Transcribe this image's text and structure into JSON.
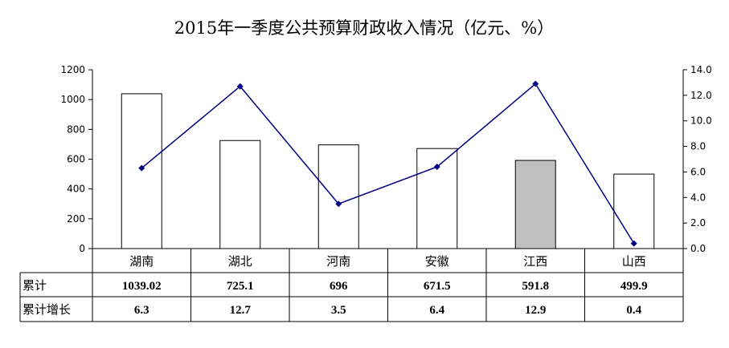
{
  "chart_data": {
    "type": "bar",
    "title": "2015年一季度公共预算财政收入情况（亿元、%）",
    "categories": [
      "湖南",
      "湖北",
      "河南",
      "安徽",
      "江西",
      "山西"
    ],
    "series": [
      {
        "name": "累计",
        "type": "bar",
        "axis": "left",
        "values": [
          1039.02,
          725.1,
          696,
          671.5,
          591.8,
          499.9
        ],
        "value_labels": [
          "1039.02",
          "725.1",
          "696",
          "671.5",
          "591.8",
          "499.9"
        ]
      },
      {
        "name": "累计增长",
        "type": "line",
        "axis": "right",
        "values": [
          6.3,
          12.7,
          3.5,
          6.4,
          12.9,
          0.4
        ],
        "value_labels": [
          "6.3",
          "12.7",
          "3.5",
          "6.4",
          "12.9",
          "0.4"
        ]
      }
    ],
    "left_axis": {
      "range": [
        0,
        1200
      ],
      "ticks": [
        "0",
        "200",
        "400",
        "600",
        "800",
        "1000",
        "1200"
      ]
    },
    "right_axis": {
      "range": [
        0,
        14
      ],
      "ticks": [
        "0.0",
        "2.0",
        "4.0",
        "6.0",
        "8.0",
        "10.0",
        "12.0",
        "14.0"
      ]
    },
    "highlight_category": "江西",
    "grid": false,
    "legend": "data-table",
    "colors": {
      "bar_fill": "#ffffff",
      "bar_highlight_fill": "#c0c0c0",
      "bar_stroke": "#000000",
      "line": "#000080",
      "axis": "#000000"
    }
  }
}
